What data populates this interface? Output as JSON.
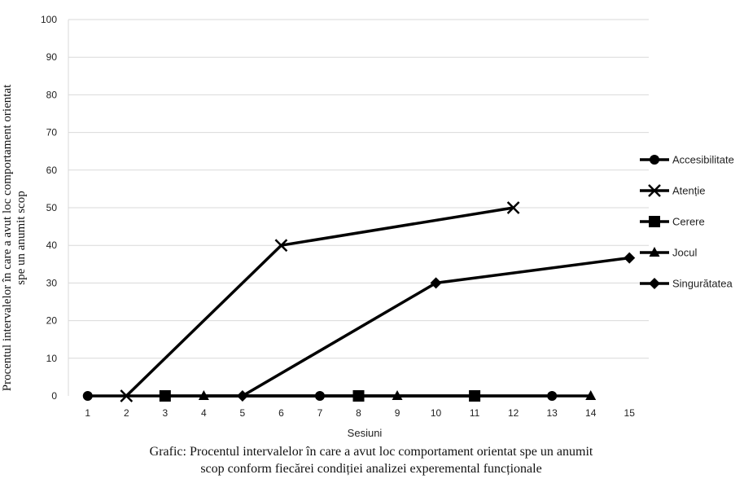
{
  "chart_data": {
    "type": "line",
    "xlabel": "Sesiuni",
    "ylabel_lines": [
      "Procentul intervalelor în care a avut loc comportament orientat",
      "spe un anumit scop"
    ],
    "caption_lines": [
      "Grafic: Procentul intervalelor în care a avut loc comportament orientat spe un anumit",
      "scop conform  fiecărei condiției analizei experemental funcționale"
    ],
    "x_ticks": [
      "1",
      "2",
      "3",
      "4",
      "5",
      "6",
      "7",
      "8",
      "9",
      "10",
      "11",
      "12",
      "13",
      "14",
      "15"
    ],
    "y_ticks": [
      "0",
      "10",
      "20",
      "30",
      "40",
      "50",
      "60",
      "70",
      "80",
      "90",
      "100"
    ],
    "xlim": [
      0.5,
      15.5
    ],
    "ylim": [
      0,
      100
    ],
    "grid": true,
    "legend_position": "right",
    "line_color": "#000000",
    "grid_color": "#d9d9d9",
    "series": [
      {
        "name": "Accesibilitate",
        "marker": "circle",
        "points": [
          [
            1,
            0
          ],
          [
            7,
            0
          ],
          [
            13,
            0
          ]
        ]
      },
      {
        "name": "Atenție",
        "marker": "x",
        "points": [
          [
            2,
            0
          ],
          [
            6,
            40
          ],
          [
            12,
            50
          ]
        ]
      },
      {
        "name": "Cerere",
        "marker": "square",
        "points": [
          [
            3,
            0
          ],
          [
            8,
            0
          ],
          [
            11,
            0
          ]
        ]
      },
      {
        "name": "Jocul",
        "marker": "triangle",
        "points": [
          [
            4,
            0
          ],
          [
            9,
            0
          ],
          [
            14,
            0
          ]
        ]
      },
      {
        "name": "Singurătatea",
        "marker": "diamond",
        "points": [
          [
            5,
            0
          ],
          [
            10,
            30
          ],
          [
            15,
            36.67
          ]
        ]
      }
    ]
  }
}
